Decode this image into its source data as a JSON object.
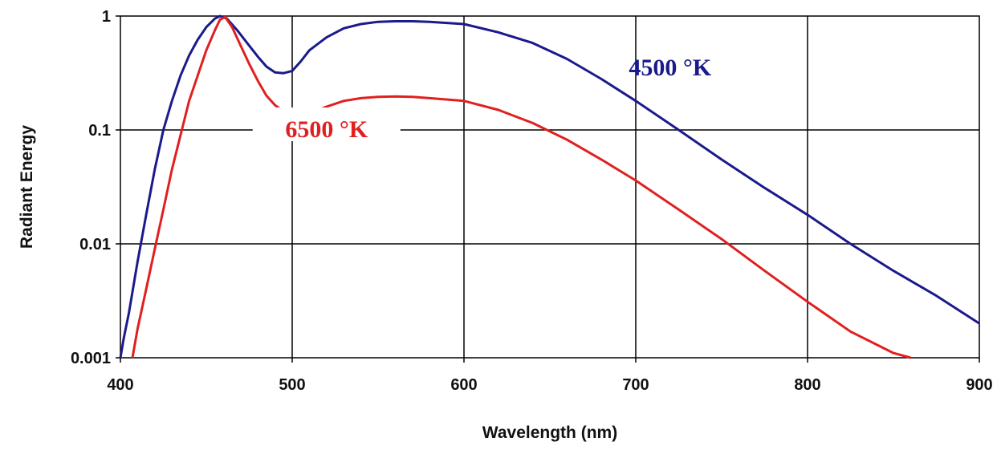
{
  "chart_data": {
    "type": "line",
    "xlabel": "Wavelength (nm)",
    "ylabel": "Radiant Energy",
    "xlim": [
      400,
      900
    ],
    "ylim": [
      0.001,
      1
    ],
    "yscale": "log",
    "grid": true,
    "x_ticks": [
      "400",
      "500",
      "600",
      "700",
      "800",
      "900"
    ],
    "y_ticks": [
      "0.001",
      "0.01",
      "0.1",
      "1"
    ],
    "series": [
      {
        "name": "4500 °K",
        "color": "#1a1a8c",
        "points": [
          [
            400,
            0.001
          ],
          [
            402,
            0.0015
          ],
          [
            405,
            0.0025
          ],
          [
            410,
            0.007
          ],
          [
            415,
            0.018
          ],
          [
            420,
            0.045
          ],
          [
            425,
            0.1
          ],
          [
            430,
            0.18
          ],
          [
            435,
            0.3
          ],
          [
            440,
            0.45
          ],
          [
            445,
            0.62
          ],
          [
            450,
            0.8
          ],
          [
            455,
            0.95
          ],
          [
            458,
            1.0
          ],
          [
            462,
            0.95
          ],
          [
            468,
            0.75
          ],
          [
            475,
            0.55
          ],
          [
            480,
            0.44
          ],
          [
            485,
            0.36
          ],
          [
            490,
            0.32
          ],
          [
            495,
            0.315
          ],
          [
            500,
            0.33
          ],
          [
            505,
            0.4
          ],
          [
            510,
            0.5
          ],
          [
            520,
            0.65
          ],
          [
            530,
            0.78
          ],
          [
            540,
            0.85
          ],
          [
            550,
            0.89
          ],
          [
            560,
            0.9
          ],
          [
            570,
            0.9
          ],
          [
            580,
            0.89
          ],
          [
            590,
            0.87
          ],
          [
            600,
            0.85
          ],
          [
            620,
            0.72
          ],
          [
            640,
            0.58
          ],
          [
            660,
            0.42
          ],
          [
            680,
            0.28
          ],
          [
            700,
            0.18
          ],
          [
            725,
            0.1
          ],
          [
            750,
            0.055
          ],
          [
            775,
            0.031
          ],
          [
            800,
            0.018
          ],
          [
            825,
            0.01
          ],
          [
            850,
            0.0058
          ],
          [
            875,
            0.0035
          ],
          [
            900,
            0.002
          ]
        ]
      },
      {
        "name": "6500 °K",
        "color": "#e02020",
        "points": [
          [
            407,
            0.001
          ],
          [
            410,
            0.0018
          ],
          [
            415,
            0.004
          ],
          [
            420,
            0.009
          ],
          [
            425,
            0.02
          ],
          [
            430,
            0.045
          ],
          [
            435,
            0.09
          ],
          [
            440,
            0.18
          ],
          [
            445,
            0.3
          ],
          [
            450,
            0.5
          ],
          [
            455,
            0.75
          ],
          [
            458,
            0.93
          ],
          [
            461,
            0.98
          ],
          [
            465,
            0.8
          ],
          [
            470,
            0.55
          ],
          [
            475,
            0.38
          ],
          [
            480,
            0.27
          ],
          [
            485,
            0.2
          ],
          [
            490,
            0.165
          ],
          [
            495,
            0.145
          ],
          [
            500,
            0.135
          ],
          [
            505,
            0.132
          ],
          [
            510,
            0.14
          ],
          [
            520,
            0.16
          ],
          [
            530,
            0.18
          ],
          [
            540,
            0.19
          ],
          [
            550,
            0.195
          ],
          [
            560,
            0.197
          ],
          [
            570,
            0.195
          ],
          [
            580,
            0.19
          ],
          [
            600,
            0.18
          ],
          [
            620,
            0.15
          ],
          [
            640,
            0.115
          ],
          [
            660,
            0.082
          ],
          [
            680,
            0.055
          ],
          [
            700,
            0.036
          ],
          [
            725,
            0.02
          ],
          [
            750,
            0.011
          ],
          [
            775,
            0.0058
          ],
          [
            800,
            0.0031
          ],
          [
            825,
            0.0017
          ],
          [
            850,
            0.0011
          ],
          [
            860,
            0.001
          ]
        ]
      }
    ],
    "annotations": [
      {
        "text": "4500 °K",
        "color": "#1a1a8c",
        "series": 0
      },
      {
        "text": "6500 °K",
        "color": "#e02020",
        "series": 1
      }
    ]
  }
}
